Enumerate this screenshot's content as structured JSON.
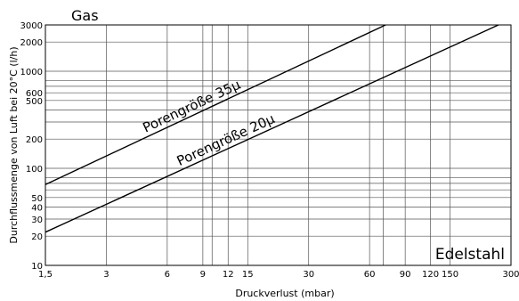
{
  "chart_data": {
    "type": "line",
    "title": "Gas",
    "corner_label": "Edelstahl",
    "xlabel": "Druckverlust (mbar)",
    "ylabel": "Durchflussmenge von Luft bei 20°C (l/h)",
    "xscale": "log",
    "yscale": "log",
    "xlim": [
      1.5,
      300
    ],
    "ylim": [
      10,
      3000
    ],
    "grid": true,
    "x_tick_labels": [
      "1,5",
      "3",
      "6",
      "9",
      "12",
      "15",
      "30",
      "60",
      "90",
      "120",
      "150",
      "300"
    ],
    "x_tick_values": [
      1.5,
      3,
      6,
      9,
      12,
      15,
      30,
      60,
      90,
      120,
      150,
      300
    ],
    "x_grid_values": [
      1.5,
      3,
      6,
      9,
      10,
      12,
      15,
      30,
      60,
      70,
      90,
      120,
      150,
      300
    ],
    "y_tick_labels": [
      "10",
      "20",
      "30",
      "40",
      "50",
      "100",
      "200",
      "500",
      "600",
      "1000",
      "2000",
      "3000"
    ],
    "y_tick_values": [
      10,
      20,
      30,
      40,
      50,
      100,
      200,
      500,
      600,
      1000,
      2000,
      3000
    ],
    "y_grid_values": [
      10,
      20,
      30,
      40,
      50,
      60,
      70,
      80,
      100,
      200,
      300,
      400,
      500,
      600,
      700,
      800,
      1000,
      2000,
      3000
    ],
    "series": [
      {
        "name": "Porengröße 35µ",
        "x": [
          1.5,
          72
        ],
        "y": [
          68,
          3000
        ]
      },
      {
        "name": "Porengröße 20µ",
        "x": [
          1.5,
          260
        ],
        "y": [
          22,
          3000
        ]
      }
    ]
  }
}
